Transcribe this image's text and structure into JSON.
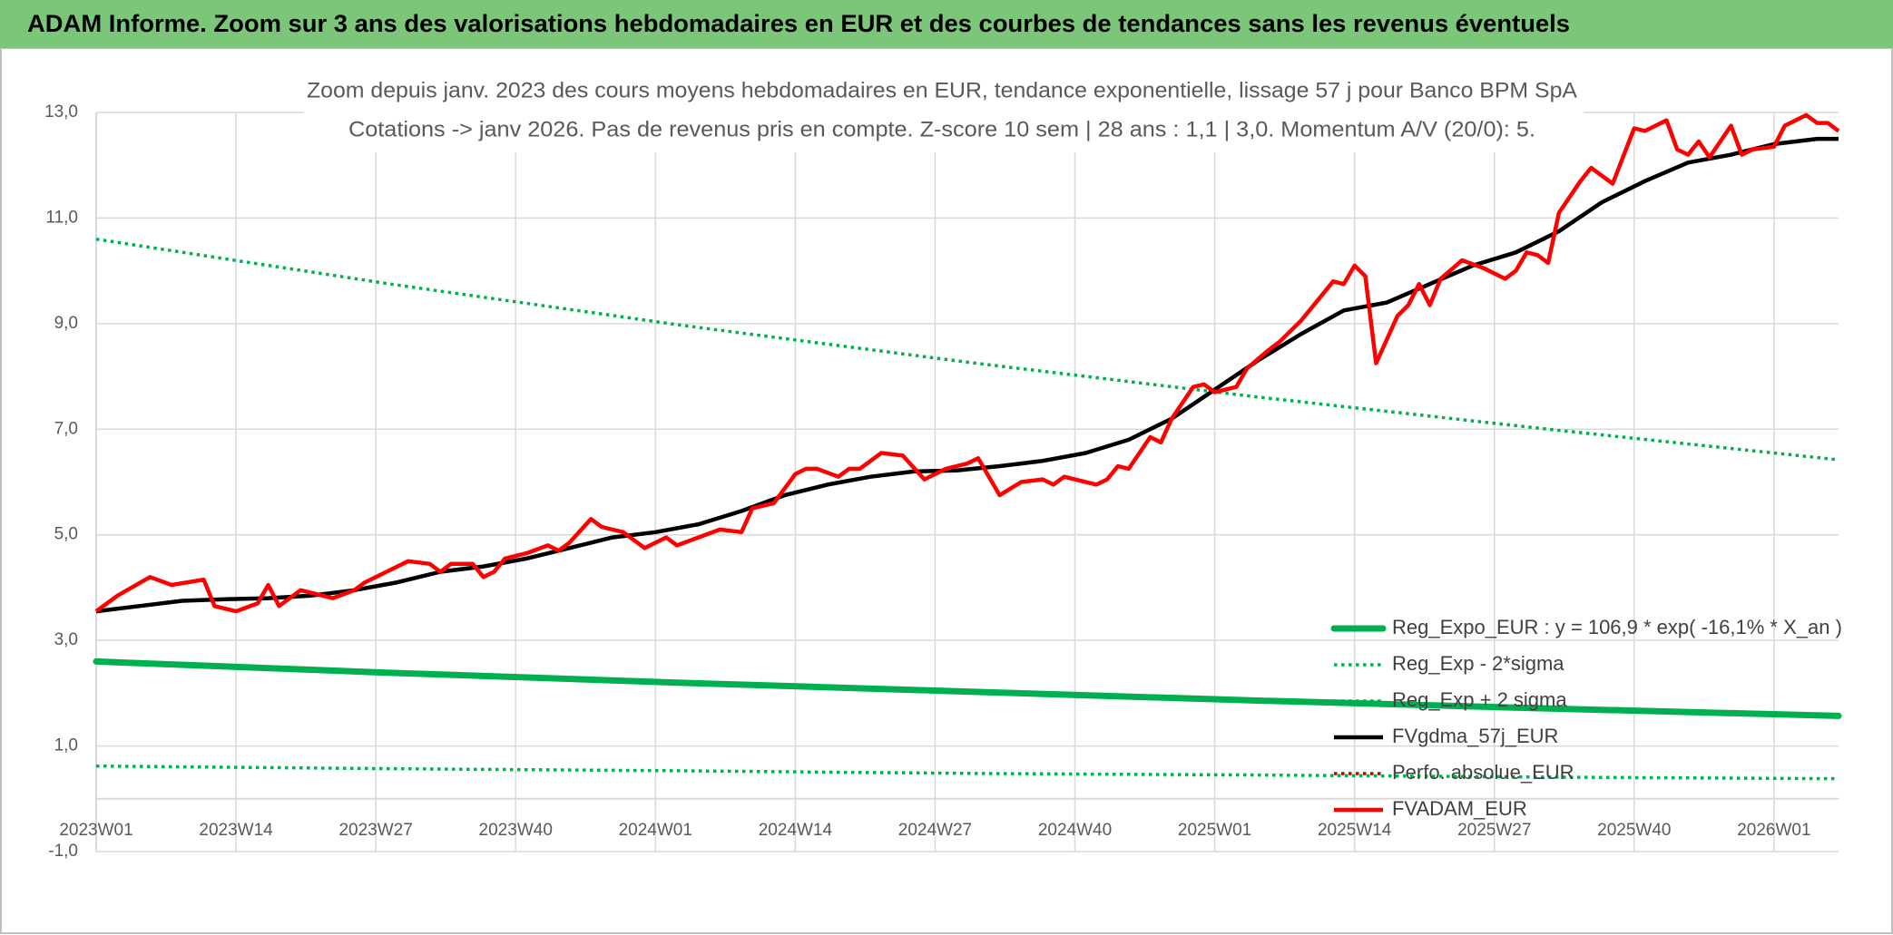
{
  "chart_data": {
    "type": "line",
    "title": "ADAM Informe. Zoom sur 3 ans des valorisations hebdomadaires en EUR et des courbes de tendances sans les revenus éventuels",
    "subtitle": [
      "Zoom depuis janv. 2023 des cours moyens hebdomadaires en EUR, tendance exponentielle, lissage 57 j pour Banco BPM SpA",
      "Cotations -> janv 2026. Pas de revenus pris en compte. Z-score 10 sem | 28 ans : 1,1 | 3,0. Momentum A/V (20/0): 5."
    ],
    "xlim": [
      0,
      162
    ],
    "xticks": [
      {
        "value": 0,
        "label": "2023W01"
      },
      {
        "value": 13,
        "label": "2023W14"
      },
      {
        "value": 26,
        "label": "2023W27"
      },
      {
        "value": 39,
        "label": "2023W40"
      },
      {
        "value": 52,
        "label": "2024W01"
      },
      {
        "value": 65,
        "label": "2024W14"
      },
      {
        "value": 78,
        "label": "2024W27"
      },
      {
        "value": 91,
        "label": "2024W40"
      },
      {
        "value": 104,
        "label": "2025W01"
      },
      {
        "value": 117,
        "label": "2025W14"
      },
      {
        "value": 130,
        "label": "2025W27"
      },
      {
        "value": 143,
        "label": "2025W40"
      },
      {
        "value": 156,
        "label": "2026W01"
      }
    ],
    "ylim": [
      -1,
      13
    ],
    "yticks": [
      {
        "value": -1,
        "label": "-1,0"
      },
      {
        "value": 1,
        "label": "1,0"
      },
      {
        "value": 3,
        "label": "3,0"
      },
      {
        "value": 5,
        "label": "5,0"
      },
      {
        "value": 7,
        "label": "7,0"
      },
      {
        "value": 9,
        "label": "9,0"
      },
      {
        "value": 11,
        "label": "11,0"
      },
      {
        "value": 13,
        "label": "13,0"
      }
    ],
    "grid": true,
    "legend": "lower right",
    "series": [
      {
        "name": "Reg_Expo_EUR : y = 106,9 * exp( -16,1% *  X_an )",
        "color": "#00b050",
        "style": "bold",
        "x": [
          0,
          27,
          54,
          81,
          108,
          135,
          162
        ],
        "values": [
          2.6,
          2.39,
          2.2,
          2.03,
          1.86,
          1.71,
          1.57
        ]
      },
      {
        "name": "Reg_Exp - 2*sigma",
        "color": "#00b050",
        "style": "dotted",
        "x": [
          0,
          27,
          54,
          81,
          108,
          135,
          162
        ],
        "values": [
          0.62,
          0.57,
          0.53,
          0.48,
          0.45,
          0.41,
          0.38
        ]
      },
      {
        "name": "Reg_Exp + 2 sigma",
        "color": "#00b050",
        "style": "dotted",
        "x": [
          0,
          27,
          54,
          81,
          108,
          135,
          162
        ],
        "values": [
          10.6,
          9.76,
          8.98,
          8.27,
          7.61,
          7.0,
          6.42
        ]
      },
      {
        "name": "FVgdma_57j_EUR",
        "color": "#000000",
        "style": "solid",
        "x": [
          0,
          4,
          8,
          12,
          16,
          20,
          24,
          28,
          32,
          36,
          40,
          44,
          48,
          52,
          56,
          60,
          64,
          68,
          72,
          76,
          80,
          84,
          88,
          92,
          96,
          100,
          104,
          108,
          112,
          116,
          120,
          124,
          128,
          132,
          136,
          140,
          144,
          148,
          152,
          156,
          160,
          162
        ],
        "values": [
          3.55,
          3.65,
          3.75,
          3.78,
          3.8,
          3.85,
          3.95,
          4.1,
          4.3,
          4.4,
          4.55,
          4.75,
          4.95,
          5.05,
          5.2,
          5.45,
          5.75,
          5.95,
          6.1,
          6.2,
          6.22,
          6.3,
          6.4,
          6.55,
          6.8,
          7.2,
          7.75,
          8.3,
          8.8,
          9.25,
          9.4,
          9.75,
          10.1,
          10.35,
          10.75,
          11.3,
          11.7,
          12.05,
          12.2,
          12.4,
          12.5,
          12.5
        ]
      },
      {
        "name": "Perfo. absolue_EUR",
        "color": "#c00000",
        "style": "dotted",
        "x": [],
        "values": []
      },
      {
        "name": "FVADAM_EUR",
        "color": "#ff0000",
        "style": "solid",
        "x": [
          0,
          2,
          5,
          7,
          10,
          11,
          13,
          15,
          16,
          17,
          19,
          22,
          24,
          25,
          27,
          29,
          31,
          32,
          33,
          35,
          36,
          37,
          38,
          40,
          42,
          43,
          44,
          46,
          47,
          49,
          51,
          53,
          54,
          56,
          58,
          60,
          61,
          63,
          65,
          66,
          67,
          69,
          70,
          71,
          73,
          75,
          77,
          79,
          80,
          81,
          82,
          84,
          86,
          88,
          89,
          90,
          91,
          93,
          94,
          95,
          96,
          98,
          99,
          100,
          102,
          103,
          104,
          106,
          107,
          109,
          110,
          112,
          113,
          115,
          116,
          117,
          118,
          119,
          121,
          122,
          123,
          124,
          125,
          127,
          129,
          131,
          132,
          133,
          134,
          135,
          136,
          138,
          139,
          141,
          143,
          144,
          146,
          147,
          148,
          149,
          150,
          152,
          153,
          154,
          156,
          157,
          159,
          160,
          161,
          162
        ],
        "values": [
          3.55,
          3.85,
          4.2,
          4.05,
          4.15,
          3.65,
          3.55,
          3.7,
          4.05,
          3.65,
          3.95,
          3.8,
          3.95,
          4.1,
          4.3,
          4.5,
          4.45,
          4.3,
          4.45,
          4.45,
          4.2,
          4.3,
          4.55,
          4.65,
          4.8,
          4.7,
          4.85,
          5.3,
          5.15,
          5.05,
          4.75,
          4.95,
          4.8,
          4.95,
          5.1,
          5.05,
          5.5,
          5.6,
          6.15,
          6.25,
          6.25,
          6.1,
          6.25,
          6.25,
          6.55,
          6.5,
          6.05,
          6.25,
          6.3,
          6.35,
          6.45,
          5.75,
          6.0,
          6.05,
          5.95,
          6.1,
          6.05,
          5.95,
          6.05,
          6.3,
          6.25,
          6.85,
          6.75,
          7.2,
          7.8,
          7.85,
          7.7,
          7.8,
          8.15,
          8.5,
          8.65,
          9.05,
          9.3,
          9.8,
          9.75,
          10.1,
          9.9,
          8.25,
          9.15,
          9.35,
          9.75,
          9.35,
          9.85,
          10.2,
          10.05,
          9.85,
          10.0,
          10.35,
          10.3,
          10.15,
          11.1,
          11.7,
          11.95,
          11.65,
          12.7,
          12.65,
          12.85,
          12.3,
          12.2,
          12.45,
          12.15,
          12.75,
          12.2,
          12.3,
          12.35,
          12.75,
          12.95,
          12.8,
          12.8,
          12.65
        ]
      }
    ]
  }
}
